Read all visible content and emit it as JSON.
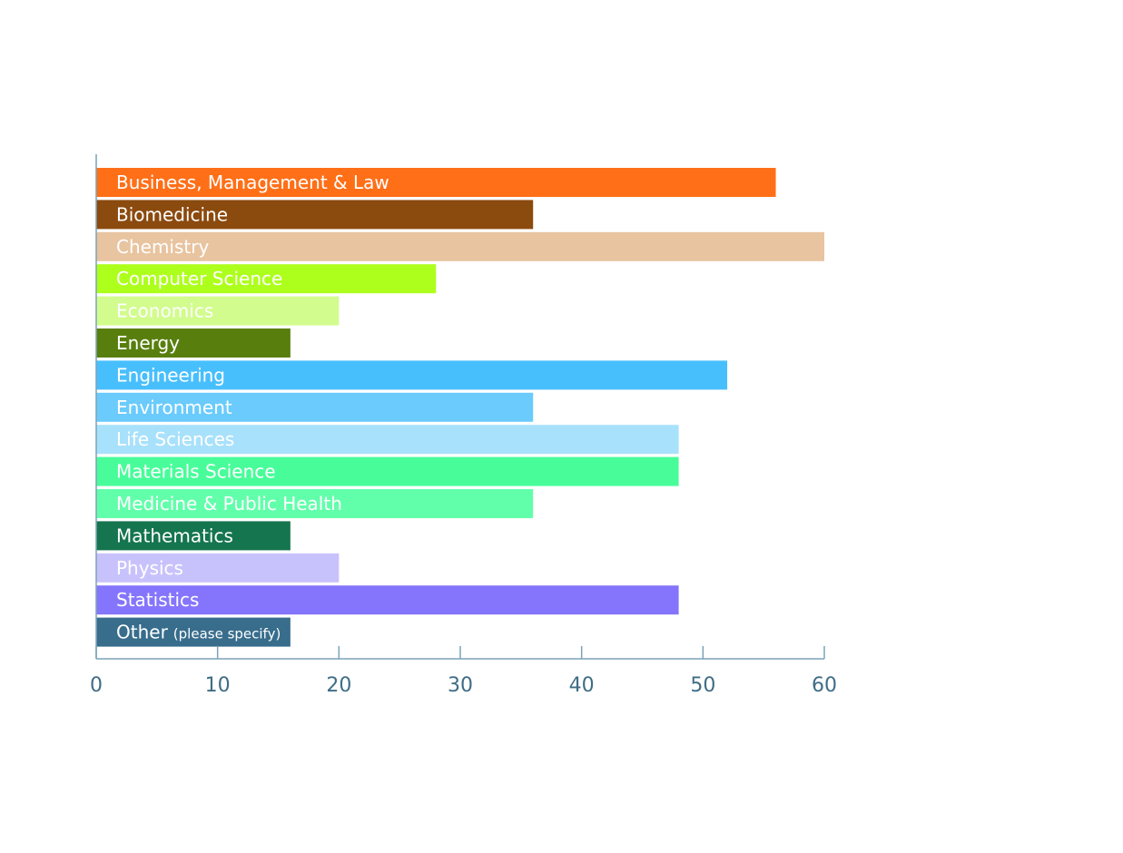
{
  "chart_data": {
    "type": "bar",
    "orientation": "horizontal",
    "categories": [
      "Business, Management & Law",
      "Biomedicine",
      "Chemistry",
      "Computer Science",
      "Economics",
      "Energy",
      "Engineering",
      "Environment",
      "Life Sciences",
      "Materials Science",
      "Medicine & Public Health",
      "Mathematics",
      "Physics",
      "Statistics",
      "Other"
    ],
    "category_notes": [
      "",
      "",
      "",
      "",
      "",
      "",
      "",
      "",
      "",
      "",
      "",
      "",
      "",
      "",
      "(please specify)"
    ],
    "values": [
      56,
      36,
      60,
      28,
      20,
      16,
      52,
      36,
      48,
      48,
      36,
      16,
      20,
      48,
      16
    ],
    "colors": [
      "#ff6f17",
      "#8b4a0e",
      "#e8c4a0",
      "#adff1c",
      "#d2fc8e",
      "#587f0e",
      "#48bffd",
      "#6acbfc",
      "#a8e1fb",
      "#48fd99",
      "#62ffab",
      "#15754f",
      "#c8c2fc",
      "#8575fc",
      "#386d8c"
    ],
    "xlim": [
      0,
      60
    ],
    "xticks": [
      0,
      10,
      20,
      30,
      40,
      50,
      60
    ],
    "xticklabels": [
      "0",
      "10",
      "20",
      "30",
      "40",
      "50",
      "60"
    ],
    "title": "",
    "xlabel": "",
    "ylabel": "",
    "grid": false,
    "axis_color": "#7aa3b8",
    "tick_label_color": "#3f6d86",
    "bar_label_color": "#ffffff"
  }
}
